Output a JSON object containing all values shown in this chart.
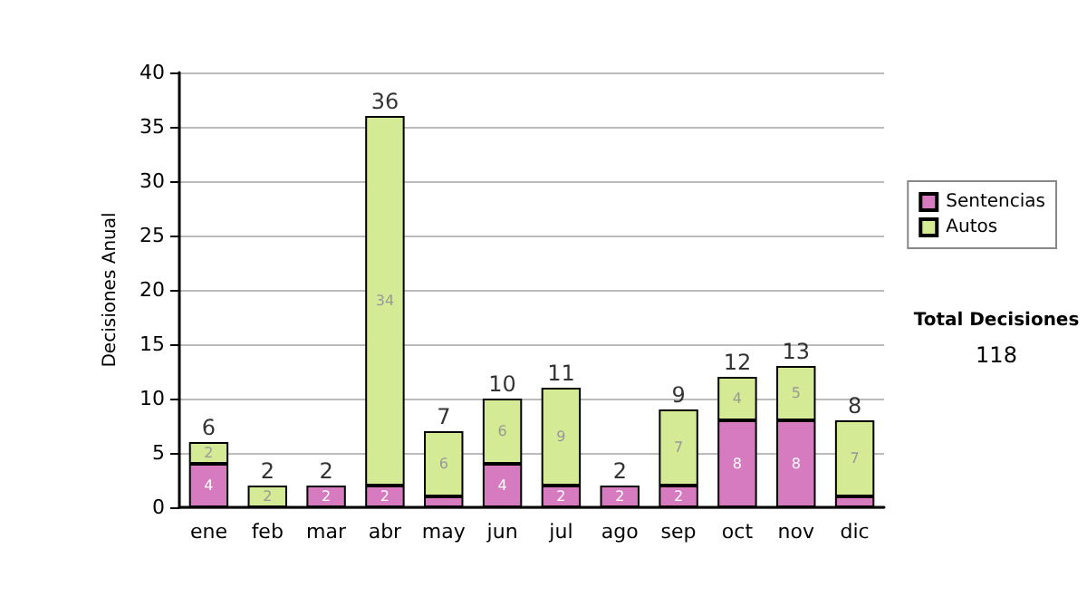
{
  "chart_data": {
    "type": "bar",
    "stacked": true,
    "ylabel": "Decisiones Anual",
    "categories": [
      "ene",
      "feb",
      "mar",
      "abr",
      "may",
      "jun",
      "jul",
      "ago",
      "sep",
      "oct",
      "nov",
      "dic"
    ],
    "series": [
      {
        "name": "Sentencias",
        "color": "#d67bbf",
        "values": [
          4,
          0,
          2,
          2,
          1,
          4,
          2,
          2,
          2,
          8,
          8,
          1
        ],
        "value_labels": [
          "4",
          null,
          "2",
          "2",
          null,
          "4",
          "2",
          "2",
          "2",
          "8",
          "8",
          null
        ]
      },
      {
        "name": "Autos",
        "color": "#d4ea94",
        "values": [
          2,
          2,
          0,
          34,
          6,
          6,
          9,
          0,
          7,
          4,
          5,
          7
        ],
        "value_labels": [
          "2",
          "2",
          null,
          "34",
          "6",
          "6",
          "9",
          null,
          "7",
          "4",
          "5",
          "7"
        ]
      }
    ],
    "totals": [
      "6",
      "2",
      "2",
      "36",
      "7",
      "10",
      "11",
      "2",
      "9",
      "12",
      "13",
      "8"
    ],
    "ylim": [
      0,
      40
    ],
    "yticks": [
      0,
      5,
      10,
      15,
      20,
      25,
      30,
      35,
      40
    ],
    "grid": "y",
    "legend": "right",
    "annotations": [
      "Total Decisiones",
      "118"
    ]
  }
}
